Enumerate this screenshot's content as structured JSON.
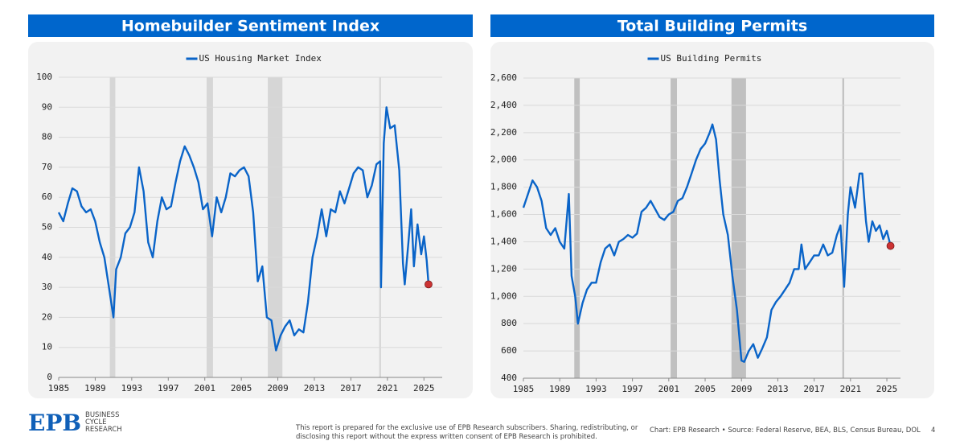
{
  "chart_data": [
    {
      "type": "line",
      "title": "Homebuilder Sentiment Index",
      "x": [
        1985.0,
        1985.5,
        1986.0,
        1986.5,
        1987.0,
        1987.5,
        1988.0,
        1988.5,
        1989.0,
        1989.5,
        1990.0,
        1990.5,
        1991.0,
        1991.3,
        1991.8,
        1992.3,
        1992.8,
        1993.3,
        1993.8,
        1994.3,
        1994.8,
        1995.3,
        1995.8,
        1996.3,
        1996.8,
        1997.3,
        1997.8,
        1998.3,
        1998.8,
        1999.3,
        1999.8,
        2000.3,
        2000.8,
        2001.3,
        2001.8,
        2002.3,
        2002.8,
        2003.3,
        2003.8,
        2004.3,
        2004.8,
        2005.3,
        2005.8,
        2006.3,
        2006.8,
        2007.3,
        2007.8,
        2008.3,
        2008.8,
        2009.3,
        2009.8,
        2010.3,
        2010.8,
        2011.3,
        2011.8,
        2012.3,
        2012.8,
        2013.3,
        2013.8,
        2014.3,
        2014.8,
        2015.3,
        2015.8,
        2016.3,
        2016.8,
        2017.3,
        2017.8,
        2018.3,
        2018.8,
        2019.3,
        2019.8,
        2020.2,
        2020.3,
        2020.6,
        2020.9,
        2021.3,
        2021.8,
        2022.3,
        2022.7,
        2022.9,
        2023.3,
        2023.6,
        2023.9,
        2024.3,
        2024.7,
        2025.0,
        2025.3,
        2025.5
      ],
      "series": [
        {
          "name": "US Housing Market Index",
          "color": "#0a64c8",
          "values": [
            55,
            52,
            58,
            63,
            62,
            57,
            55,
            56,
            52,
            45,
            40,
            30,
            20,
            36,
            40,
            48,
            50,
            55,
            70,
            62,
            45,
            40,
            52,
            60,
            56,
            57,
            65,
            72,
            77,
            74,
            70,
            65,
            56,
            58,
            47,
            60,
            55,
            60,
            68,
            67,
            69,
            70,
            67,
            55,
            32,
            37,
            20,
            19,
            9,
            14,
            17,
            19,
            14,
            16,
            15,
            25,
            40,
            47,
            56,
            47,
            56,
            55,
            62,
            58,
            63,
            68,
            70,
            69,
            60,
            64,
            71,
            72,
            30,
            78,
            90,
            83,
            84,
            69,
            38,
            31,
            45,
            56,
            37,
            51,
            41,
            47,
            39,
            31
          ]
        }
      ],
      "xlim": [
        1985,
        2027
      ],
      "xticks": [
        1985,
        1989,
        1993,
        1997,
        2001,
        2005,
        2009,
        2013,
        2017,
        2021,
        2025
      ],
      "ylim": [
        0,
        100
      ],
      "yticks": [
        0,
        10,
        20,
        30,
        40,
        50,
        60,
        70,
        80,
        90,
        100
      ],
      "grid": true,
      "shaded_periods": [
        [
          1990.6,
          1991.2
        ],
        [
          2001.2,
          2001.9
        ],
        [
          2007.9,
          2009.5
        ],
        [
          2020.1,
          2020.3
        ]
      ],
      "shade_color": "#d6d6d6",
      "last_point_color": "#cc3333"
    },
    {
      "type": "line",
      "title": "Total Building Permits",
      "x": [
        1985.0,
        1985.5,
        1986.0,
        1986.5,
        1987.0,
        1987.5,
        1988.0,
        1988.5,
        1989.0,
        1989.5,
        1990.0,
        1990.3,
        1990.7,
        1991.0,
        1991.5,
        1992.0,
        1992.5,
        1993.0,
        1993.5,
        1994.0,
        1994.5,
        1995.0,
        1995.5,
        1996.0,
        1996.5,
        1997.0,
        1997.5,
        1998.0,
        1998.5,
        1999.0,
        1999.5,
        2000.0,
        2000.5,
        2001.0,
        2001.5,
        2002.0,
        2002.5,
        2003.0,
        2003.5,
        2004.0,
        2004.5,
        2005.0,
        2005.5,
        2005.8,
        2006.2,
        2006.6,
        2007.0,
        2007.5,
        2008.0,
        2008.5,
        2009.0,
        2009.3,
        2009.8,
        2010.3,
        2010.8,
        2011.3,
        2011.8,
        2012.3,
        2012.8,
        2013.3,
        2013.8,
        2014.3,
        2014.8,
        2015.3,
        2015.6,
        2016.0,
        2016.5,
        2017.0,
        2017.5,
        2018.0,
        2018.5,
        2019.0,
        2019.5,
        2019.9,
        2020.3,
        2020.7,
        2021.0,
        2021.5,
        2022.0,
        2022.3,
        2022.7,
        2023.0,
        2023.4,
        2023.8,
        2024.2,
        2024.6,
        2025.0,
        2025.3,
        2025.4
      ],
      "series": [
        {
          "name": "US Building Permits",
          "color": "#0a64c8",
          "values": [
            1650,
            1750,
            1850,
            1800,
            1700,
            1500,
            1450,
            1500,
            1400,
            1350,
            1750,
            1150,
            1000,
            800,
            950,
            1050,
            1100,
            1100,
            1250,
            1350,
            1380,
            1300,
            1400,
            1420,
            1450,
            1430,
            1460,
            1620,
            1650,
            1700,
            1640,
            1580,
            1560,
            1600,
            1620,
            1700,
            1720,
            1800,
            1900,
            2000,
            2080,
            2120,
            2200,
            2260,
            2150,
            1850,
            1600,
            1450,
            1150,
            900,
            530,
            520,
            600,
            650,
            550,
            620,
            700,
            900,
            960,
            1000,
            1050,
            1100,
            1200,
            1200,
            1380,
            1200,
            1250,
            1300,
            1300,
            1380,
            1300,
            1320,
            1450,
            1520,
            1070,
            1600,
            1800,
            1650,
            1900,
            1900,
            1550,
            1400,
            1550,
            1480,
            1520,
            1420,
            1480,
            1400,
            1370
          ]
        }
      ],
      "xlim": [
        1985,
        2026.5
      ],
      "xticks": [
        1985,
        1989,
        1993,
        1997,
        2001,
        2005,
        2009,
        2013,
        2017,
        2021,
        2025
      ],
      "ylim": [
        400,
        2600
      ],
      "yticks": [
        400,
        600,
        800,
        {
          "value": 1000,
          "label": "1,000"
        },
        {
          "value": 1200,
          "label": "1,200"
        },
        {
          "value": 1400,
          "label": "1,400"
        },
        {
          "value": 1600,
          "label": "1,600"
        },
        {
          "value": 1800,
          "label": "1,800"
        },
        {
          "value": 2000,
          "label": "2,000"
        },
        {
          "value": 2200,
          "label": "2,200"
        },
        {
          "value": 2400,
          "label": "2,400"
        },
        {
          "value": 2600,
          "label": "2,600"
        }
      ],
      "grid": true,
      "shaded_periods": [
        [
          1990.6,
          1991.2
        ],
        [
          2001.2,
          2001.9
        ],
        [
          2007.9,
          2009.5
        ],
        [
          2020.1,
          2020.3
        ]
      ],
      "shade_color": "#c0c0c0",
      "last_point_color": "#cc3333"
    }
  ],
  "footer": {
    "logo": "EPB",
    "logo_sub": [
      "BUSINESS",
      "CYCLE",
      "RESEARCH"
    ],
    "disclaimer": [
      "This report is prepared for the exclusive use of EPB Research subscribers. Sharing, redistributing, or",
      "disclosing this report without the express written consent of EPB Research is prohibited."
    ],
    "source": "Chart: EPB Research  •  Source: Federal Reserve, BEA, BLS, Census Bureau, DOL",
    "page": "4"
  }
}
